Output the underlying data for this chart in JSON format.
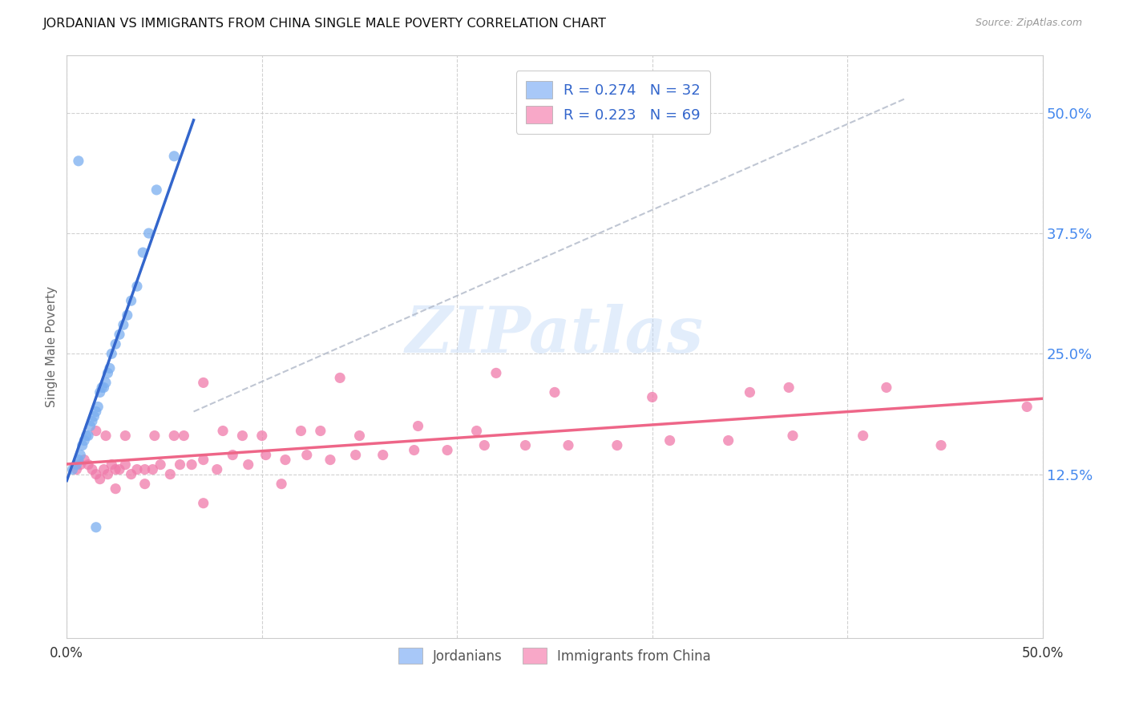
{
  "title": "JORDANIAN VS IMMIGRANTS FROM CHINA SINGLE MALE POVERTY CORRELATION CHART",
  "source": "Source: ZipAtlas.com",
  "ylabel": "Single Male Poverty",
  "ytick_vals": [
    0.125,
    0.25,
    0.375,
    0.5
  ],
  "xlim": [
    0.0,
    0.5
  ],
  "ylim": [
    -0.045,
    0.56
  ],
  "legend_entries": [
    {
      "label": "R = 0.274   N = 32",
      "color": "#a8c8f8"
    },
    {
      "label": "R = 0.223   N = 69",
      "color": "#f8a8c8"
    }
  ],
  "legend_labels_bottom": [
    "Jordanians",
    "Immigrants from China"
  ],
  "jordanian_color": "#7aaef0",
  "china_color": "#f07aaa",
  "jordanian_line_color": "#3366cc",
  "china_line_color": "#ee6688",
  "jordanian_x": [
    0.003,
    0.005,
    0.006,
    0.007,
    0.008,
    0.009,
    0.01,
    0.011,
    0.012,
    0.013,
    0.014,
    0.015,
    0.016,
    0.017,
    0.018,
    0.019,
    0.02,
    0.021,
    0.022,
    0.023,
    0.025,
    0.027,
    0.029,
    0.031,
    0.033,
    0.036,
    0.039,
    0.042,
    0.046,
    0.055,
    0.006,
    0.015
  ],
  "jordanian_y": [
    0.13,
    0.135,
    0.14,
    0.145,
    0.155,
    0.16,
    0.165,
    0.165,
    0.175,
    0.18,
    0.185,
    0.19,
    0.195,
    0.21,
    0.215,
    0.215,
    0.22,
    0.23,
    0.235,
    0.25,
    0.26,
    0.27,
    0.28,
    0.29,
    0.305,
    0.32,
    0.355,
    0.375,
    0.42,
    0.455,
    0.45,
    0.07
  ],
  "china_x": [
    0.005,
    0.007,
    0.009,
    0.011,
    0.013,
    0.015,
    0.017,
    0.019,
    0.021,
    0.023,
    0.025,
    0.027,
    0.03,
    0.033,
    0.036,
    0.04,
    0.044,
    0.048,
    0.053,
    0.058,
    0.064,
    0.07,
    0.077,
    0.085,
    0.093,
    0.102,
    0.112,
    0.123,
    0.135,
    0.148,
    0.162,
    0.178,
    0.195,
    0.214,
    0.235,
    0.257,
    0.282,
    0.309,
    0.339,
    0.372,
    0.408,
    0.448,
    0.492,
    0.025,
    0.04,
    0.055,
    0.07,
    0.09,
    0.11,
    0.13,
    0.015,
    0.02,
    0.03,
    0.045,
    0.06,
    0.08,
    0.1,
    0.12,
    0.15,
    0.18,
    0.21,
    0.25,
    0.3,
    0.35,
    0.42,
    0.07,
    0.14,
    0.22,
    0.37
  ],
  "china_y": [
    0.13,
    0.135,
    0.14,
    0.135,
    0.13,
    0.125,
    0.12,
    0.13,
    0.125,
    0.135,
    0.13,
    0.13,
    0.135,
    0.125,
    0.13,
    0.13,
    0.13,
    0.135,
    0.125,
    0.135,
    0.135,
    0.14,
    0.13,
    0.145,
    0.135,
    0.145,
    0.14,
    0.145,
    0.14,
    0.145,
    0.145,
    0.15,
    0.15,
    0.155,
    0.155,
    0.155,
    0.155,
    0.16,
    0.16,
    0.165,
    0.165,
    0.155,
    0.195,
    0.11,
    0.115,
    0.165,
    0.095,
    0.165,
    0.115,
    0.17,
    0.17,
    0.165,
    0.165,
    0.165,
    0.165,
    0.17,
    0.165,
    0.17,
    0.165,
    0.175,
    0.17,
    0.21,
    0.205,
    0.21,
    0.215,
    0.22,
    0.225,
    0.23,
    0.215
  ],
  "dashed_line": {
    "x": [
      0.065,
      0.43
    ],
    "y": [
      0.19,
      0.515
    ]
  },
  "watermark_text": "ZIPatlas",
  "watermark_color": "#c0d8f8",
  "watermark_alpha": 0.45
}
